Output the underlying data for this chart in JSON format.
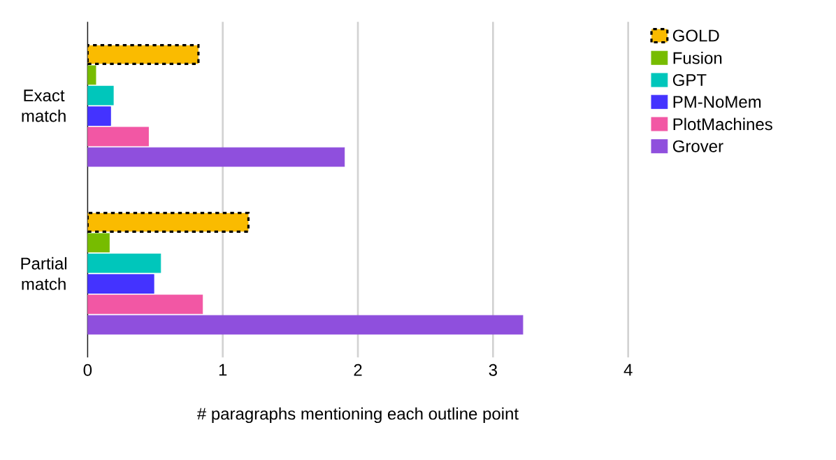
{
  "chart_data": {
    "type": "bar",
    "orientation": "horizontal",
    "xlabel": "# paragraphs mentioning each outline point",
    "categories": [
      "Exact match",
      "Partial match"
    ],
    "series": [
      {
        "name": "GOLD",
        "color": "#fabb00",
        "values": [
          0.82,
          1.19
        ],
        "line_style": "dashed"
      },
      {
        "name": "Fusion",
        "color": "#77bc00",
        "values": [
          0.06,
          0.16
        ]
      },
      {
        "name": "GPT",
        "color": "#00c6bb",
        "values": [
          0.19,
          0.54
        ]
      },
      {
        "name": "PM-NoMem",
        "color": "#4433ff",
        "values": [
          0.17,
          0.49
        ]
      },
      {
        "name": "PlotMachines",
        "color": "#f257a4",
        "values": [
          0.45,
          0.85
        ]
      },
      {
        "name": "Grover",
        "color": "#8f4fdd",
        "values": [
          1.9,
          3.22
        ]
      }
    ],
    "xlim": [
      0,
      4
    ],
    "xticks": [
      0,
      1,
      2,
      3,
      4
    ],
    "grid": "x",
    "legend": "right"
  }
}
